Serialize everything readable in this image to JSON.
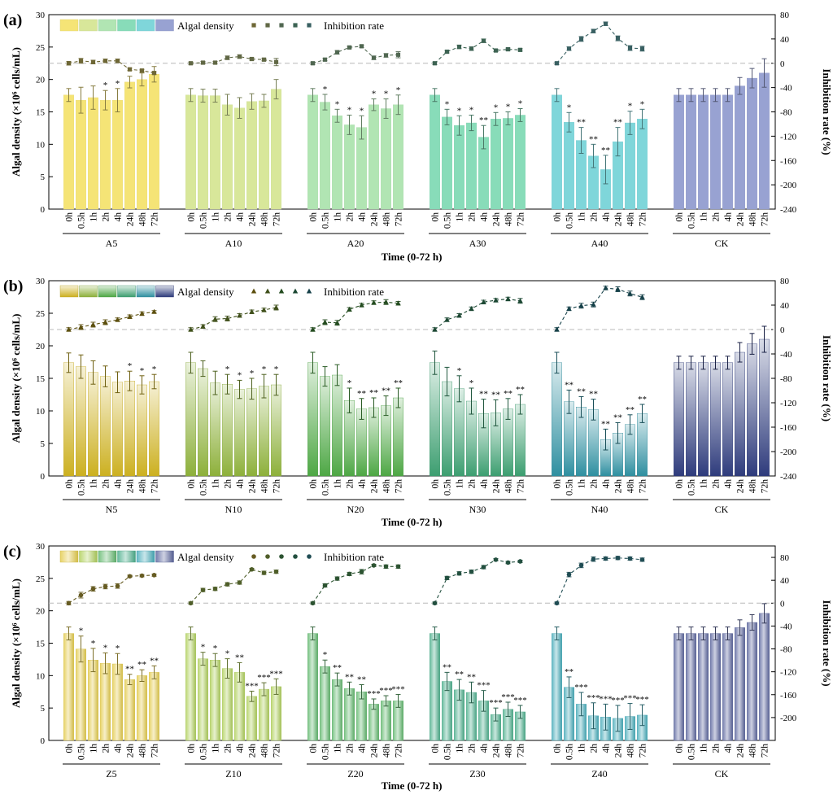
{
  "title": "",
  "chart_data": [
    {
      "type": "bar",
      "panel": "(a)",
      "xlabel": "Time (0-72 h)",
      "ylabel": "Algal density (×10⁶ cells/mL)",
      "ylabel_right": "Inhibition rate (%)",
      "ylim": [
        0,
        30
      ],
      "y2lim": [
        -240,
        80
      ],
      "yticks": [
        "0",
        "5",
        "10",
        "15",
        "20",
        "25",
        "30"
      ],
      "y2ticks": [
        "-240",
        "-200",
        "-160",
        "-120",
        "-80",
        "-40",
        "0",
        "40",
        "80"
      ],
      "legend": {
        "bar": "Algal density",
        "line": "Inhibition rate",
        "placement": "top-left"
      },
      "time_labels": [
        "0h",
        "0.5h",
        "1h",
        "2h",
        "4h",
        "24h",
        "48h",
        "72h",
        "0h",
        "0.5h",
        "1h",
        "2h",
        "4h",
        "24h",
        "48h",
        "72h",
        "0h",
        "0.5h",
        "1h",
        "2h",
        "4h",
        "24h",
        "48h",
        "72h",
        "0h",
        "0.5h",
        "1h",
        "2h",
        "4h",
        "24h",
        "48h",
        "72h",
        "0h",
        "0.5h",
        "1h",
        "2h",
        "4h",
        "24h",
        "48h",
        "72h",
        "0h",
        "0.5h",
        "1h",
        "2h",
        "4h",
        "24h",
        "48h",
        "72h"
      ],
      "groups": [
        {
          "name": "A5",
          "color": "#f5e476",
          "values": [
            17.6,
            16.8,
            17.2,
            16.8,
            16.8,
            19.6,
            20.0,
            20.8
          ],
          "errors": [
            1.0,
            2.0,
            1.8,
            1.5,
            1.8,
            0.9,
            1.0,
            1.2
          ],
          "sig": [
            "",
            "",
            "",
            "*",
            "*",
            "",
            "",
            ""
          ],
          "inhibition": [
            0,
            4,
            2,
            4,
            4,
            -10,
            -12,
            -16
          ],
          "inh_err": [
            3,
            4,
            3,
            3,
            3,
            2,
            2,
            2
          ]
        },
        {
          "name": "A10",
          "color": "#d8e79a",
          "values": [
            17.6,
            17.5,
            17.5,
            16.1,
            15.6,
            16.6,
            16.7,
            18.5
          ],
          "errors": [
            1.0,
            1.0,
            1.0,
            1.6,
            1.6,
            1.2,
            1.0,
            1.5
          ],
          "sig": [
            "",
            "",
            "",
            "",
            "",
            "",
            "",
            ""
          ],
          "inhibition": [
            0,
            1,
            1,
            9,
            11,
            7,
            6,
            2
          ],
          "inh_err": [
            2,
            2,
            2,
            3,
            3,
            2,
            2,
            6
          ]
        },
        {
          "name": "A20",
          "color": "#b1e5b3",
          "values": [
            17.6,
            16.5,
            14.4,
            13.0,
            12.6,
            16.1,
            15.5,
            16.1
          ],
          "errors": [
            1.0,
            1.2,
            1.0,
            1.5,
            1.8,
            0.9,
            1.5,
            1.5
          ],
          "sig": [
            "",
            "*",
            "*",
            "*",
            "*",
            "*",
            "*",
            "*"
          ],
          "inhibition": [
            0,
            6,
            18,
            26,
            28,
            9,
            13,
            14
          ],
          "inh_err": [
            2,
            2,
            3,
            2,
            2,
            3,
            3,
            5
          ]
        },
        {
          "name": "A30",
          "color": "#88dcb9",
          "values": [
            17.6,
            14.2,
            12.9,
            13.3,
            11.1,
            13.9,
            14.0,
            14.5
          ],
          "errors": [
            1.0,
            1.2,
            1.5,
            1.2,
            1.8,
            1.0,
            1.0,
            1.0
          ],
          "sig": [
            "",
            "*",
            "*",
            "*",
            "**",
            "*",
            "*",
            "*"
          ],
          "inhibition": [
            0,
            19,
            27,
            24,
            37,
            21,
            23,
            22
          ],
          "inh_err": [
            2,
            2,
            3,
            3,
            3,
            2,
            2,
            2
          ]
        },
        {
          "name": "A40",
          "color": "#7fd6da",
          "values": [
            17.6,
            13.4,
            10.6,
            8.2,
            6.1,
            10.4,
            13.3,
            13.9
          ],
          "errors": [
            1.0,
            1.5,
            2.0,
            1.8,
            2.2,
            2.2,
            1.8,
            1.5
          ],
          "sig": [
            "",
            "*",
            "**",
            "**",
            "**",
            "**",
            "*",
            "*"
          ],
          "inhibition": [
            0,
            24,
            40,
            53,
            65,
            41,
            25,
            24
          ],
          "inh_err": [
            2,
            3,
            4,
            3,
            3,
            4,
            4,
            4
          ]
        },
        {
          "name": "CK",
          "color": "#98a2d2",
          "values": [
            17.6,
            17.6,
            17.6,
            17.6,
            17.6,
            19.0,
            20.2,
            21.0
          ],
          "errors": [
            1.0,
            1.0,
            1.0,
            1.0,
            1.0,
            1.3,
            1.5,
            2.2
          ],
          "sig": [
            "",
            "",
            "",
            "",
            "",
            "",
            "",
            ""
          ],
          "inhibition": [],
          "inh_err": []
        }
      ]
    },
    {
      "type": "bar",
      "panel": "(b)",
      "xlabel": "Time (0-72 h)",
      "ylabel": "Algal density (×10⁶ cells/mL)",
      "ylabel_right": "Inhibition rate (%)",
      "ylim": [
        0,
        30
      ],
      "y2lim": [
        -240,
        80
      ],
      "yticks": [
        "0",
        "5",
        "10",
        "15",
        "20",
        "25",
        "30"
      ],
      "y2ticks": [
        "-240",
        "-200",
        "-160",
        "-120",
        "-80",
        "-40",
        "0",
        "40",
        "80"
      ],
      "legend": {
        "bar": "Algal density",
        "line": "Inhibition rate",
        "placement": "top-left"
      },
      "time_labels": [
        "0h",
        "0.5h",
        "1h",
        "2h",
        "4h",
        "24h",
        "48h",
        "72h",
        "0h",
        "0.5h",
        "1h",
        "2h",
        "4h",
        "24h",
        "48h",
        "72h",
        "0h",
        "0.5h",
        "1h",
        "2h",
        "4h",
        "24h",
        "48h",
        "72h",
        "0h",
        "0.5h",
        "1h",
        "2h",
        "4h",
        "24h",
        "48h",
        "72h",
        "0h",
        "0.5h",
        "1h",
        "2h",
        "4h",
        "24h",
        "48h",
        "72h",
        "0h",
        "0.5h",
        "1h",
        "2h",
        "4h",
        "24h",
        "48h",
        "72h"
      ],
      "groups": [
        {
          "name": "N5",
          "color": "#ccb020",
          "values": [
            17.4,
            16.8,
            15.9,
            15.3,
            14.4,
            14.6,
            14.0,
            14.5
          ],
          "errors": [
            1.5,
            1.8,
            1.8,
            1.6,
            1.6,
            1.5,
            1.4,
            1.1
          ],
          "sig": [
            "",
            "",
            "",
            "",
            "",
            "*",
            "*",
            "*"
          ],
          "inhibition": [
            0,
            4,
            8,
            12,
            16,
            21,
            26,
            29
          ],
          "inh_err": [
            3,
            4,
            4,
            4,
            3,
            3,
            3,
            2
          ]
        },
        {
          "name": "N10",
          "color": "#8db03a",
          "values": [
            17.4,
            16.5,
            14.3,
            14.1,
            13.3,
            13.4,
            13.8,
            14.0
          ],
          "errors": [
            1.6,
            1.2,
            1.8,
            1.5,
            1.4,
            1.6,
            1.8,
            1.6
          ],
          "sig": [
            "",
            "",
            "",
            "*",
            "*",
            "*",
            "*",
            "*"
          ],
          "inhibition": [
            0,
            5,
            17,
            18,
            23,
            29,
            32,
            36
          ],
          "inh_err": [
            3,
            3,
            4,
            4,
            3,
            3,
            3,
            4
          ]
        },
        {
          "name": "N20",
          "color": "#4da744",
          "values": [
            17.4,
            15.3,
            15.5,
            11.6,
            10.3,
            10.5,
            10.8,
            12.0
          ],
          "errors": [
            1.6,
            1.5,
            1.6,
            1.9,
            1.6,
            1.5,
            1.5,
            1.5
          ],
          "sig": [
            "",
            "",
            "",
            "*",
            "**",
            "**",
            "**",
            "**"
          ],
          "inhibition": [
            0,
            12,
            11,
            33,
            40,
            44,
            45,
            43
          ],
          "inh_err": [
            3,
            4,
            4,
            3,
            3,
            3,
            4,
            3
          ]
        },
        {
          "name": "N30",
          "color": "#3c9e70",
          "values": [
            17.4,
            14.5,
            13.4,
            11.5,
            9.6,
            9.7,
            10.3,
            11.0
          ],
          "errors": [
            1.8,
            2.2,
            2.0,
            2.0,
            2.2,
            2.0,
            1.6,
            1.5
          ],
          "sig": [
            "",
            "",
            "*",
            "*",
            "**",
            "**",
            "**",
            "**"
          ],
          "inhibition": [
            0,
            16,
            23,
            34,
            45,
            48,
            50,
            47
          ],
          "inh_err": [
            3,
            3,
            3,
            3,
            3,
            3,
            3,
            4
          ]
        },
        {
          "name": "N40",
          "color": "#2e8fa0",
          "values": [
            17.4,
            11.4,
            10.6,
            10.2,
            5.6,
            6.6,
            7.9,
            9.6
          ],
          "errors": [
            1.6,
            1.8,
            1.6,
            1.6,
            1.6,
            1.6,
            1.5,
            1.4
          ],
          "sig": [
            "",
            "**",
            "**",
            "**",
            "**",
            "**",
            "**",
            "**"
          ],
          "inhibition": [
            0,
            34,
            39,
            41,
            68,
            66,
            59,
            53
          ],
          "inh_err": [
            3,
            3,
            4,
            4,
            3,
            4,
            4,
            4
          ]
        },
        {
          "name": "CK",
          "color": "#2e3b7c",
          "values": [
            17.4,
            17.4,
            17.4,
            17.4,
            17.4,
            19.0,
            20.3,
            21.0
          ],
          "errors": [
            1.0,
            1.0,
            1.0,
            1.0,
            1.0,
            1.5,
            1.6,
            2.0
          ],
          "sig": [
            "",
            "",
            "",
            "",
            "",
            "",
            "",
            ""
          ],
          "inhibition": [],
          "inh_err": []
        }
      ]
    },
    {
      "type": "bar",
      "panel": "(c)",
      "xlabel": "Time (0-72 h)",
      "ylabel": "Algal density (×10⁶ cells/mL)",
      "ylabel_right": "Inhibition rate (%)",
      "ylim": [
        0,
        30
      ],
      "y2lim": [
        -240,
        100
      ],
      "yticks": [
        "0",
        "5",
        "10",
        "15",
        "20",
        "25",
        "30"
      ],
      "y2ticks": [
        "-200",
        "-160",
        "-120",
        "-80",
        "-40",
        "0",
        "40",
        "80"
      ],
      "legend": {
        "bar": "Algal density",
        "line": "Inhibition rate",
        "placement": "top-left"
      },
      "time_labels": [
        "0h",
        "0.5h",
        "1h",
        "2h",
        "4h",
        "24h",
        "48h",
        "72h",
        "0h",
        "0.5h",
        "1h",
        "2h",
        "4h",
        "24h",
        "48h",
        "72h",
        "0h",
        "0.5h",
        "1h",
        "2h",
        "4h",
        "24h",
        "48h",
        "72h",
        "0h",
        "0.5h",
        "1h",
        "2h",
        "4h",
        "24h",
        "48h",
        "72h",
        "0h",
        "0.5h",
        "1h",
        "2h",
        "4h",
        "24h",
        "48h",
        "72h",
        "0h",
        "0.5h",
        "1h",
        "2h",
        "4h",
        "24h",
        "48h",
        "72h"
      ],
      "groups": [
        {
          "name": "Z5",
          "color": "#e3cb4c",
          "values": [
            16.5,
            14.1,
            12.4,
            11.9,
            11.8,
            9.4,
            10.0,
            10.5
          ],
          "errors": [
            1.0,
            2.0,
            1.8,
            1.6,
            1.6,
            0.8,
            0.9,
            1.0
          ],
          "sig": [
            "",
            "*",
            "*",
            "*",
            "*",
            "**",
            "**",
            "**"
          ],
          "inhibition": [
            0,
            14,
            25,
            29,
            30,
            47,
            48,
            49
          ],
          "inh_err": [
            3,
            5,
            4,
            4,
            4,
            2,
            2,
            2
          ]
        },
        {
          "name": "Z10",
          "color": "#b0d05c",
          "values": [
            16.5,
            12.6,
            12.4,
            11.1,
            10.5,
            6.8,
            7.9,
            8.3
          ],
          "errors": [
            1.0,
            1.0,
            1.0,
            1.5,
            1.5,
            0.8,
            1.0,
            1.2
          ],
          "sig": [
            "",
            "*",
            "*",
            "*",
            "**",
            "***",
            "***",
            "***"
          ],
          "inhibition": [
            0,
            23,
            25,
            33,
            36,
            59,
            53,
            55
          ],
          "inh_err": [
            2,
            3,
            3,
            3,
            3,
            2,
            3,
            3
          ]
        },
        {
          "name": "Z20",
          "color": "#62b86e",
          "values": [
            16.5,
            11.4,
            9.4,
            8.0,
            7.5,
            5.6,
            6.1,
            6.1
          ],
          "errors": [
            1.0,
            1.0,
            1.0,
            1.0,
            1.1,
            0.8,
            0.8,
            1.0
          ],
          "sig": [
            "",
            "*",
            "**",
            "**",
            "**",
            "***",
            "***",
            "***"
          ],
          "inhibition": [
            0,
            31,
            43,
            51,
            55,
            66,
            64,
            64
          ],
          "inh_err": [
            2,
            3,
            3,
            3,
            4,
            2,
            3,
            3
          ]
        },
        {
          "name": "Z30",
          "color": "#4caf8c",
          "values": [
            16.5,
            9.1,
            7.8,
            7.4,
            6.1,
            4.0,
            4.8,
            4.4
          ],
          "errors": [
            1.0,
            1.4,
            1.6,
            1.6,
            1.6,
            1.0,
            1.1,
            1.0
          ],
          "sig": [
            "",
            "**",
            "**",
            "**",
            "***",
            "***",
            "***",
            "***"
          ],
          "inhibition": [
            0,
            44,
            52,
            55,
            63,
            76,
            71,
            73
          ],
          "inh_err": [
            2,
            3,
            3,
            3,
            3,
            2,
            2,
            2
          ]
        },
        {
          "name": "Z40",
          "color": "#46acba",
          "values": [
            16.5,
            8.2,
            5.6,
            3.8,
            3.6,
            3.4,
            3.7,
            3.9
          ],
          "errors": [
            1.0,
            1.6,
            1.8,
            2.0,
            2.0,
            2.0,
            2.0,
            1.6
          ],
          "sig": [
            "",
            "**",
            "***",
            "***",
            "***",
            "***",
            "***",
            "***"
          ],
          "inhibition": [
            0,
            50,
            66,
            77,
            78,
            79,
            78,
            76
          ],
          "inh_err": [
            2,
            4,
            4,
            4,
            3,
            3,
            3,
            3
          ]
        },
        {
          "name": "CK",
          "color": "#5c669e",
          "values": [
            16.5,
            16.5,
            16.5,
            16.5,
            16.5,
            17.4,
            18.2,
            19.6
          ],
          "errors": [
            1.0,
            1.0,
            1.0,
            1.0,
            1.0,
            1.2,
            1.2,
            1.5
          ],
          "sig": [
            "",
            "",
            "",
            "",
            "",
            "",
            "",
            ""
          ],
          "inhibition": [],
          "inh_err": []
        }
      ]
    }
  ]
}
